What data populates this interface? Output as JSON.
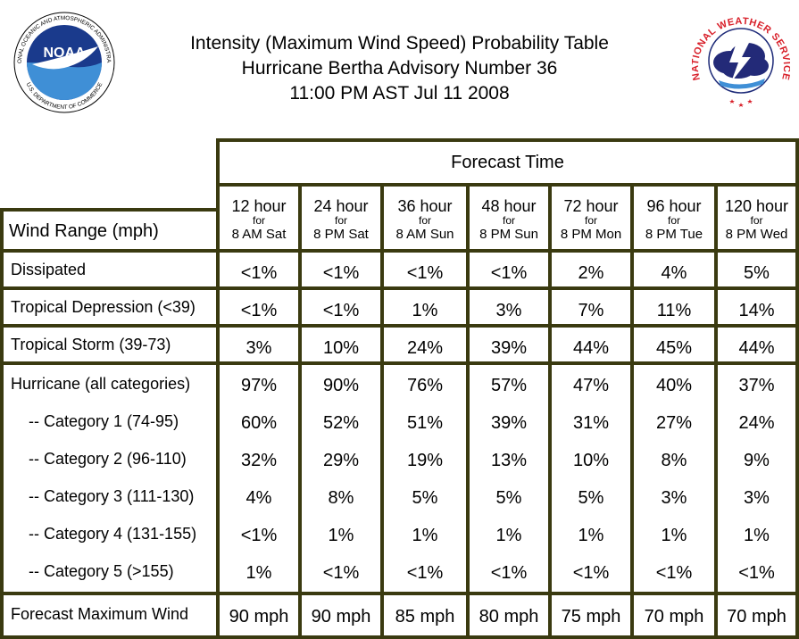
{
  "title": {
    "line1": "Intensity (Maximum Wind Speed) Probability Table",
    "line2": "Hurricane Bertha Advisory Number 36",
    "line3": "11:00 PM AST Jul 11 2008"
  },
  "logos": {
    "noaa_text": "NOAA",
    "noaa_ring_top": "NATIONAL OCEANIC AND ATMOSPHERIC ADMINISTRATION",
    "noaa_ring_bottom": "U.S. DEPARTMENT OF COMMERCE",
    "nws_ring": "NATIONAL WEATHER SERVICE"
  },
  "table": {
    "forecast_time_label": "Forecast Time",
    "wind_range_label": "Wind Range (mph)",
    "columns": [
      {
        "hour": "12 hour",
        "for": "for",
        "when": "8 AM Sat"
      },
      {
        "hour": "24 hour",
        "for": "for",
        "when": "8 PM Sat"
      },
      {
        "hour": "36 hour",
        "for": "for",
        "when": "8 AM Sun"
      },
      {
        "hour": "48 hour",
        "for": "for",
        "when": "8 PM Sun"
      },
      {
        "hour": "72 hour",
        "for": "for",
        "when": "8 PM Mon"
      },
      {
        "hour": "96 hour",
        "for": "for",
        "when": "8 PM Tue"
      },
      {
        "hour": "120 hour",
        "for": "for",
        "when": "8 PM Wed"
      }
    ],
    "rows": [
      {
        "label": "Dissipated",
        "values": [
          "<1%",
          "<1%",
          "<1%",
          "<1%",
          "2%",
          "4%",
          "5%"
        ]
      },
      {
        "label": "Tropical Depression (<39)",
        "values": [
          "<1%",
          "<1%",
          "1%",
          "3%",
          "7%",
          "11%",
          "14%"
        ]
      },
      {
        "label": "Tropical Storm (39-73)",
        "values": [
          "3%",
          "10%",
          "24%",
          "39%",
          "44%",
          "45%",
          "44%"
        ]
      },
      {
        "label": "Hurricane (all categories)",
        "values": [
          "97%",
          "90%",
          "76%",
          "57%",
          "47%",
          "40%",
          "37%"
        ]
      },
      {
        "label": "-- Category 1 (74-95)",
        "values": [
          "60%",
          "52%",
          "51%",
          "39%",
          "31%",
          "27%",
          "24%"
        ]
      },
      {
        "label": "-- Category 2 (96-110)",
        "values": [
          "32%",
          "29%",
          "19%",
          "13%",
          "10%",
          "8%",
          "9%"
        ]
      },
      {
        "label": "-- Category 3 (111-130)",
        "values": [
          "4%",
          "8%",
          "5%",
          "5%",
          "5%",
          "3%",
          "3%"
        ]
      },
      {
        "label": "-- Category 4 (131-155)",
        "values": [
          "<1%",
          "1%",
          "1%",
          "1%",
          "1%",
          "1%",
          "1%"
        ]
      },
      {
        "label": "-- Category 5 (>155)",
        "values": [
          "1%",
          "<1%",
          "<1%",
          "<1%",
          "<1%",
          "<1%",
          "<1%"
        ]
      }
    ],
    "forecast_max_wind": {
      "label": "Forecast Maximum Wind",
      "values": [
        "90 mph",
        "90 mph",
        "85 mph",
        "80 mph",
        "75 mph",
        "70 mph",
        "70 mph"
      ]
    }
  },
  "colors": {
    "grid": "#3a3a10",
    "noaa_blue": "#1a3a8c",
    "noaa_light": "#3f8fd6",
    "nws_red": "#d8202a",
    "nws_cloud": "#232a78"
  }
}
